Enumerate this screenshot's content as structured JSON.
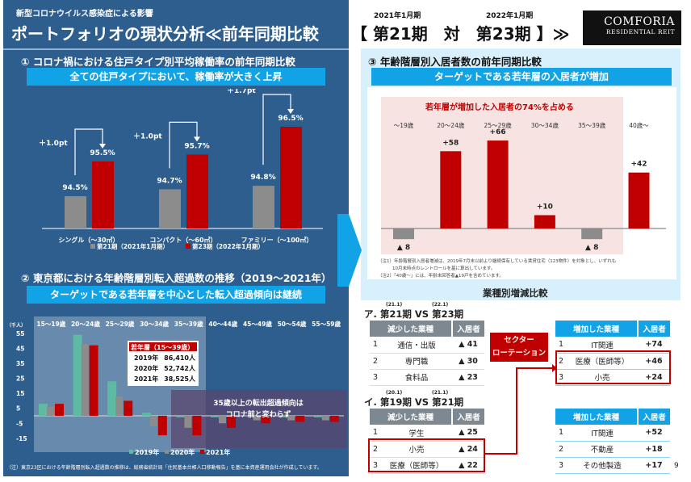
{
  "header": {
    "subtitle": "新型コロナウイルス感染症による影響",
    "title": "ポートフォリオの現状分析≪前年同期比較",
    "title_suffix": "【 第21期　対　第23期 】≫",
    "period_a": "2021年1月期",
    "period_b": "2022年1月期",
    "logo_line1": "COMFORIA",
    "logo_line2": "RESIDENTIAL REIT"
  },
  "section1": {
    "heading": "① コロナ禍における住戸タイプ別平均稼働率の前年同期比較",
    "banner": "全ての住戸タイプにおいて、稼働率が大きく上昇",
    "chart_data": {
      "type": "bar",
      "categories": [
        "シングル（～30㎡）",
        "コンパクト（～60㎡）",
        "ファミリー（～100㎡）"
      ],
      "series": [
        {
          "name": "第21期（2021年1月期）",
          "values": [
            94.5,
            94.7,
            94.8
          ],
          "labels": [
            "94.5%",
            "94.7%",
            "94.8%"
          ],
          "color": "#8c8c8c"
        },
        {
          "name": "第23期（2022年1月期）",
          "values": [
            95.5,
            95.7,
            96.5
          ],
          "labels": [
            "95.5%",
            "95.7%",
            "96.5%"
          ],
          "color": "#c00000"
        }
      ],
      "annotations": [
        "＋1.0pt",
        "＋1.0pt",
        "＋1.7pt"
      ]
    }
  },
  "section2": {
    "heading": "② 東京都における年齢階層別転入超過数の推移（2019～2021年）",
    "banner": "ターゲットである若年層を中心とした転入超過傾向は継続",
    "chart_data": {
      "type": "bar",
      "ylabel": "（千人）",
      "yticks": [
        55,
        45,
        35,
        25,
        15,
        5,
        -5,
        -15
      ],
      "ylim": [
        -15,
        55
      ],
      "categories": [
        "15～19歳",
        "20～24歳",
        "25～29歳",
        "30～34歳",
        "35～39歳",
        "40～44歳",
        "45～49歳",
        "50～54歳",
        "55～59歳"
      ],
      "series": [
        {
          "name": "2019年",
          "color": "#5dbba3",
          "values": [
            8,
            54,
            23,
            2,
            -1,
            -1,
            0,
            -1,
            -1
          ]
        },
        {
          "name": "2020年",
          "color": "#8c8c8c",
          "values": [
            6,
            48,
            13,
            -7,
            -8,
            -5,
            -3,
            -3,
            -3
          ]
        },
        {
          "name": "2021年",
          "color": "#c00000",
          "values": [
            8,
            47,
            10,
            -13,
            -13,
            -8,
            -5,
            -4,
            -4
          ]
        }
      ],
      "inset": {
        "title": "若年層（15～39歳）",
        "rows": [
          [
            "2019年",
            "86,410人"
          ],
          [
            "2020年",
            "52,742人"
          ],
          [
            "2021年",
            "38,525人"
          ]
        ]
      },
      "callout": [
        "35歳以上の転出超過傾向は",
        "コロナ前と変わらず"
      ]
    },
    "note": "（注）東京23区における年齢階層別転入超過数の推移は、総務省統計局「住民基本台帳人口移動報告」を基に本資産運用会社が作成しています。"
  },
  "section3": {
    "heading": "③ 年齢階層別入居者数の前年同期比較",
    "banner": "ターゲットである若年層の入居者が増加",
    "chart_data": {
      "type": "bar",
      "title": "若年層が増加した入居者の74%を占める",
      "categories": [
        "～19歳",
        "20～24歳",
        "25～29歳",
        "30～34歳",
        "35～39歳",
        "40歳～"
      ],
      "values": [
        -8,
        58,
        66,
        10,
        -8,
        42
      ],
      "labels": [
        "▲ 8",
        "+58",
        "+66",
        "+10",
        "▲ 8",
        "+42"
      ]
    },
    "notes": [
      "（注1）年齢階層別入居者増減は、2019年7月末以前より継続保有している賃貸住宅（123物件）を対象とし、いずれも",
      "10月末時点のレントロールを基に算出しています。",
      "（注2）「40歳～」には、年齢未回答者▲19戸を含めています。"
    ]
  },
  "section4": {
    "heading": "業種別増減比較",
    "rotation": [
      "セクター",
      "ローテーション"
    ],
    "a": {
      "label": "ア. 第21期 VS 第23期",
      "sup1": "(21.1)",
      "sup2": "(22.1)",
      "dec": {
        "headers": [
          "減少した業種",
          "入居者"
        ],
        "rows": [
          [
            "1",
            "通信・出版",
            "▲ 41"
          ],
          [
            "2",
            "専門職",
            "▲ 30"
          ],
          [
            "3",
            "食料品",
            "▲ 23"
          ]
        ]
      },
      "inc": {
        "headers": [
          "増加した業種",
          "入居者"
        ],
        "rows": [
          [
            "1",
            "IT関連",
            "+74"
          ],
          [
            "2",
            "医療（医師等）",
            "+46"
          ],
          [
            "3",
            "小売",
            "+24"
          ]
        ]
      }
    },
    "b": {
      "label": "イ. 第19期 VS 第21期",
      "sup1": "(20.1)",
      "sup2": "(21.1)",
      "dec": {
        "headers": [
          "減少した業種",
          "入居者"
        ],
        "rows": [
          [
            "1",
            "学生",
            "▲ 25"
          ],
          [
            "2",
            "小売",
            "▲ 24"
          ],
          [
            "3",
            "医療（医師等）",
            "▲ 22"
          ]
        ]
      },
      "inc": {
        "headers": [
          "増加した業種",
          "入居者"
        ],
        "rows": [
          [
            "1",
            "IT関連",
            "+52"
          ],
          [
            "2",
            "不動産",
            "+18"
          ],
          [
            "3",
            "その他製造",
            "+17"
          ]
        ]
      }
    }
  },
  "page_number": "9"
}
